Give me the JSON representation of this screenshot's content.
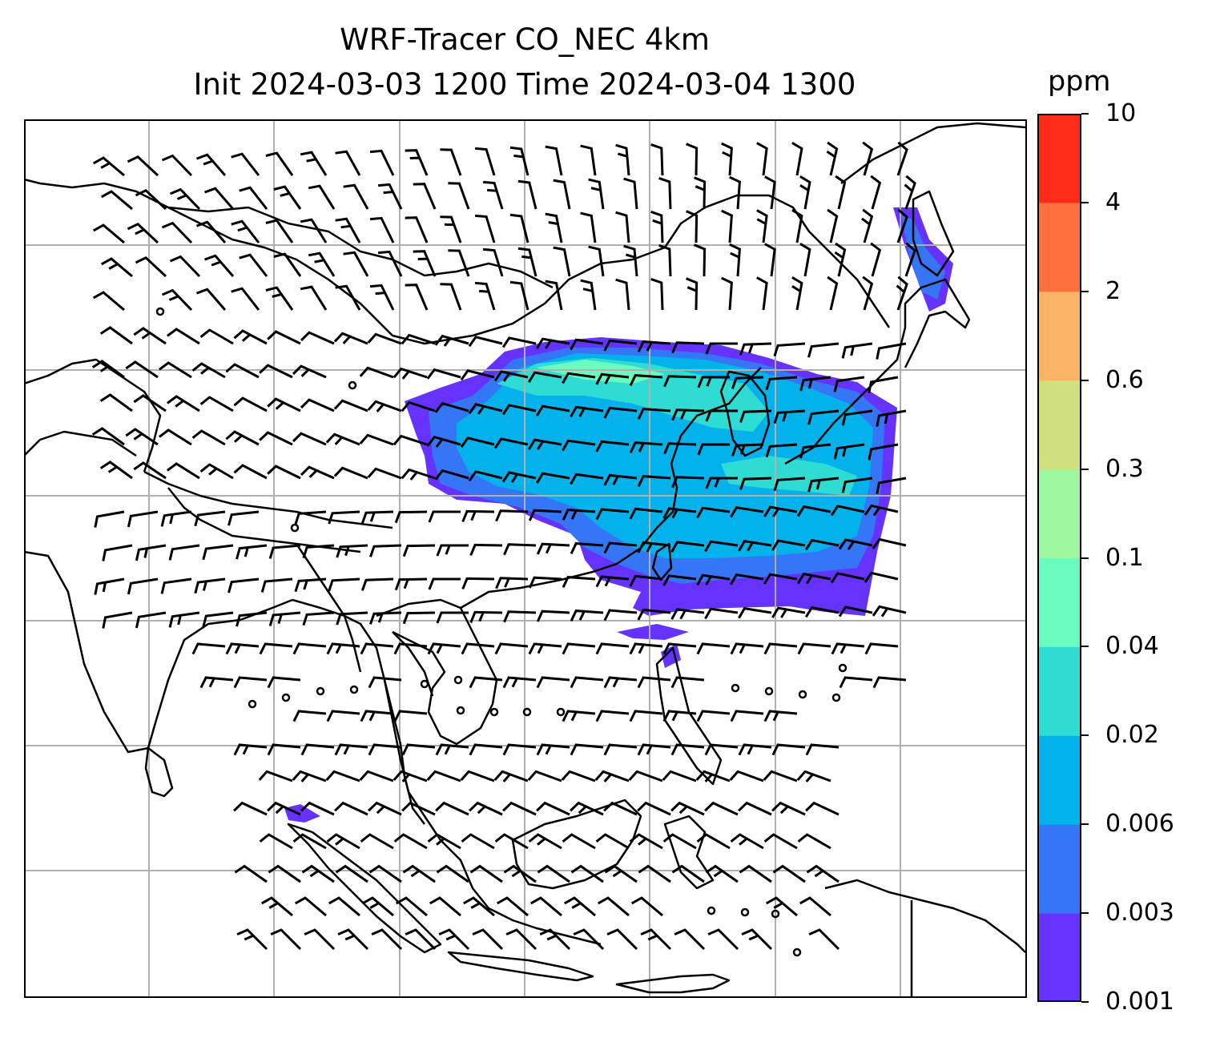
{
  "title": {
    "line1": "WRF-Tracer CO_NEC 4km",
    "line2": "Init 2024-03-03 1200 Time 2024-03-04 1300"
  },
  "colorbar": {
    "unit": "ppm",
    "levels": [
      "0.001",
      "0.003",
      "0.006",
      "0.02",
      "0.04",
      "0.1",
      "0.3",
      "0.6",
      "2",
      "4",
      "10"
    ],
    "colors": [
      "#6632ff",
      "#3476f5",
      "#03b2ea",
      "#2fdcd4",
      "#6afcbe",
      "#9ef79c",
      "#d0e07f",
      "#fdb365",
      "#ff7040",
      "#ff2a18"
    ]
  },
  "map": {
    "projection": "Mercator, lat/lon gridlines",
    "gridline_color": "#b0b0b0",
    "coast_color": "#000000",
    "wind_barb_color": "#000000"
  }
}
